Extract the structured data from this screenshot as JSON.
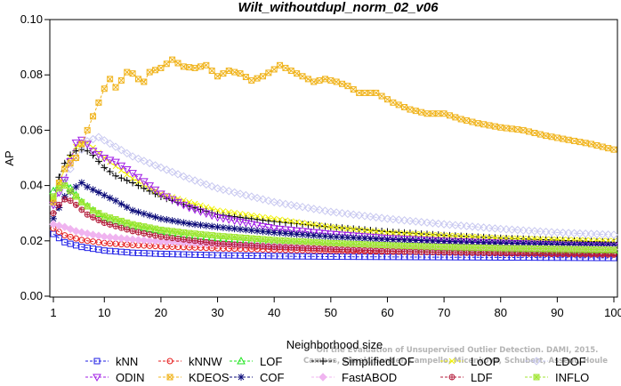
{
  "chart_data": {
    "type": "line",
    "title": "Wilt_withoutdupl_norm_02_v06",
    "xlabel": "Neighborhood size",
    "ylabel": "AP",
    "xlim": [
      1,
      100
    ],
    "ylim": [
      0,
      0.1
    ],
    "xticks": [
      "1",
      "10",
      "20",
      "30",
      "40",
      "50",
      "60",
      "70",
      "80",
      "90",
      "100"
    ],
    "yticks": [
      "0.00",
      "0.02",
      "0.04",
      "0.06",
      "0.08",
      "0.10"
    ],
    "credit_lines": [
      "Campos, Zimek, Sander, Campello, Micenkova, Schubert, Assent, Houle",
      "On the Evaluation of Unsupervised Outlier Detection. DAMI, 2015."
    ],
    "legend_position": "bottom",
    "series": [
      {
        "name": "kNN",
        "color": "#1e1ee6",
        "marker": "square",
        "points": [
          [
            1,
            0.0225
          ],
          [
            3,
            0.0195
          ],
          [
            6,
            0.0178
          ],
          [
            10,
            0.0165
          ],
          [
            15,
            0.0157
          ],
          [
            20,
            0.0153
          ],
          [
            30,
            0.0148
          ],
          [
            40,
            0.0145
          ],
          [
            50,
            0.0143
          ],
          [
            60,
            0.0142
          ],
          [
            70,
            0.0141
          ],
          [
            80,
            0.014
          ],
          [
            90,
            0.0139
          ],
          [
            100,
            0.0138
          ]
        ]
      },
      {
        "name": "kNNW",
        "color": "#e61e1e",
        "marker": "circle",
        "points": [
          [
            1,
            0.0245
          ],
          [
            3,
            0.022
          ],
          [
            6,
            0.0203
          ],
          [
            10,
            0.0192
          ],
          [
            15,
            0.0185
          ],
          [
            20,
            0.018
          ],
          [
            30,
            0.0173
          ],
          [
            40,
            0.0168
          ],
          [
            50,
            0.0164
          ],
          [
            60,
            0.0161
          ],
          [
            70,
            0.0159
          ],
          [
            80,
            0.0157
          ],
          [
            90,
            0.0155
          ],
          [
            100,
            0.0154
          ]
        ]
      },
      {
        "name": "LOF",
        "color": "#1ee61e",
        "marker": "triangle-up",
        "points": [
          [
            1,
            0.038
          ],
          [
            2,
            0.04
          ],
          [
            3,
            0.041
          ],
          [
            4,
            0.039
          ],
          [
            6,
            0.034
          ],
          [
            8,
            0.031
          ],
          [
            10,
            0.0285
          ],
          [
            15,
            0.0255
          ],
          [
            20,
            0.0235
          ],
          [
            25,
            0.022
          ],
          [
            30,
            0.021
          ],
          [
            40,
            0.0195
          ],
          [
            50,
            0.0185
          ],
          [
            60,
            0.0178
          ],
          [
            70,
            0.0173
          ],
          [
            80,
            0.017
          ],
          [
            90,
            0.0167
          ],
          [
            100,
            0.0165
          ]
        ]
      },
      {
        "name": "SimplifiedLOF",
        "color": "#000000",
        "marker": "plus",
        "points": [
          [
            1,
            0.034
          ],
          [
            2,
            0.043
          ],
          [
            3,
            0.048
          ],
          [
            4,
            0.051
          ],
          [
            5,
            0.0525
          ],
          [
            6,
            0.053
          ],
          [
            7,
            0.0525
          ],
          [
            8,
            0.051
          ],
          [
            10,
            0.0465
          ],
          [
            12,
            0.0435
          ],
          [
            15,
            0.041
          ],
          [
            20,
            0.036
          ],
          [
            25,
            0.0325
          ],
          [
            30,
            0.0295
          ],
          [
            40,
            0.027
          ],
          [
            50,
            0.025
          ],
          [
            60,
            0.0233
          ],
          [
            70,
            0.022
          ],
          [
            80,
            0.021
          ],
          [
            90,
            0.0202
          ],
          [
            100,
            0.0195
          ]
        ]
      },
      {
        "name": "LoOP",
        "color": "#f0f000",
        "marker": "cross",
        "points": [
          [
            1,
            0.035
          ],
          [
            3,
            0.046
          ],
          [
            5,
            0.054
          ],
          [
            7,
            0.0555
          ],
          [
            10,
            0.05
          ],
          [
            15,
            0.0425
          ],
          [
            20,
            0.037
          ],
          [
            30,
            0.031
          ],
          [
            40,
            0.028
          ],
          [
            50,
            0.025
          ],
          [
            60,
            0.023
          ],
          [
            70,
            0.022
          ],
          [
            80,
            0.021
          ],
          [
            90,
            0.0205
          ],
          [
            100,
            0.02
          ]
        ]
      },
      {
        "name": "LDOF",
        "color": "#c8c8f0",
        "marker": "diamond",
        "points": [
          [
            1,
            0.033
          ],
          [
            3,
            0.042
          ],
          [
            5,
            0.05
          ],
          [
            7,
            0.056
          ],
          [
            9,
            0.0575
          ],
          [
            12,
            0.054
          ],
          [
            15,
            0.0505
          ],
          [
            20,
            0.0465
          ],
          [
            25,
            0.0425
          ],
          [
            30,
            0.039
          ],
          [
            40,
            0.034
          ],
          [
            50,
            0.0305
          ],
          [
            60,
            0.028
          ],
          [
            70,
            0.026
          ],
          [
            80,
            0.0243
          ],
          [
            90,
            0.023
          ],
          [
            100,
            0.0222
          ]
        ]
      },
      {
        "name": "ODIN",
        "color": "#a01ee6",
        "marker": "triangle-down",
        "points": [
          [
            1,
            0.033
          ],
          [
            3,
            0.042
          ],
          [
            5,
            0.0555
          ],
          [
            6,
            0.0565
          ],
          [
            7,
            0.055
          ],
          [
            8,
            0.0525
          ],
          [
            10,
            0.05
          ],
          [
            12,
            0.0485
          ],
          [
            15,
            0.0445
          ],
          [
            18,
            0.04
          ],
          [
            20,
            0.037
          ],
          [
            25,
            0.032
          ],
          [
            30,
            0.0285
          ],
          [
            40,
            0.0245
          ],
          [
            50,
            0.0225
          ],
          [
            60,
            0.021
          ],
          [
            70,
            0.02
          ],
          [
            80,
            0.0193
          ],
          [
            90,
            0.0187
          ],
          [
            100,
            0.0183
          ]
        ]
      },
      {
        "name": "KDEOS",
        "color": "#f0b41e",
        "marker": "square-x",
        "points": [
          [
            1,
            0.034
          ],
          [
            2,
            0.041
          ],
          [
            3,
            0.046
          ],
          [
            4,
            0.048
          ],
          [
            5,
            0.05
          ],
          [
            6,
            0.055
          ],
          [
            7,
            0.06
          ],
          [
            8,
            0.065
          ],
          [
            9,
            0.07
          ],
          [
            10,
            0.075
          ],
          [
            11,
            0.0785
          ],
          [
            12,
            0.0755
          ],
          [
            13,
            0.078
          ],
          [
            14,
            0.081
          ],
          [
            15,
            0.0805
          ],
          [
            16,
            0.0785
          ],
          [
            17,
            0.0775
          ],
          [
            18,
            0.081
          ],
          [
            20,
            0.0825
          ],
          [
            22,
            0.0855
          ],
          [
            24,
            0.083
          ],
          [
            26,
            0.0825
          ],
          [
            28,
            0.0835
          ],
          [
            30,
            0.0795
          ],
          [
            32,
            0.0815
          ],
          [
            34,
            0.0805
          ],
          [
            36,
            0.078
          ],
          [
            38,
            0.0795
          ],
          [
            40,
            0.082
          ],
          [
            41,
            0.0835
          ],
          [
            43,
            0.0815
          ],
          [
            45,
            0.0795
          ],
          [
            47,
            0.0775
          ],
          [
            49,
            0.0785
          ],
          [
            51,
            0.0775
          ],
          [
            53,
            0.076
          ],
          [
            55,
            0.0735
          ],
          [
            58,
            0.0735
          ],
          [
            61,
            0.07
          ],
          [
            64,
            0.0675
          ],
          [
            67,
            0.066
          ],
          [
            70,
            0.066
          ],
          [
            73,
            0.064
          ],
          [
            76,
            0.0625
          ],
          [
            80,
            0.061
          ],
          [
            84,
            0.06
          ],
          [
            88,
            0.058
          ],
          [
            92,
            0.0565
          ],
          [
            96,
            0.055
          ],
          [
            100,
            0.053
          ]
        ]
      },
      {
        "name": "COF",
        "color": "#0a0a78",
        "marker": "asterisk",
        "points": [
          [
            1,
            0.028
          ],
          [
            3,
            0.036
          ],
          [
            5,
            0.0395
          ],
          [
            6,
            0.041
          ],
          [
            7,
            0.0395
          ],
          [
            8,
            0.0385
          ],
          [
            10,
            0.0365
          ],
          [
            12,
            0.0345
          ],
          [
            15,
            0.031
          ],
          [
            20,
            0.028
          ],
          [
            25,
            0.0262
          ],
          [
            30,
            0.025
          ],
          [
            40,
            0.023
          ],
          [
            50,
            0.0215
          ],
          [
            60,
            0.0205
          ],
          [
            70,
            0.0198
          ],
          [
            80,
            0.0192
          ],
          [
            90,
            0.0188
          ],
          [
            100,
            0.0185
          ]
        ]
      },
      {
        "name": "FastABOD",
        "color": "#f0b4f0",
        "marker": "diamond-fill",
        "points": [
          [
            1,
            0.026
          ],
          [
            3,
            0.025
          ],
          [
            5,
            0.0235
          ],
          [
            8,
            0.0222
          ],
          [
            10,
            0.0215
          ],
          [
            15,
            0.0205
          ],
          [
            20,
            0.0198
          ],
          [
            30,
            0.0188
          ],
          [
            40,
            0.0182
          ],
          [
            50,
            0.0178
          ],
          [
            60,
            0.0175
          ],
          [
            70,
            0.0173
          ],
          [
            80,
            0.0171
          ],
          [
            90,
            0.017
          ],
          [
            100,
            0.0169
          ]
        ]
      },
      {
        "name": "LDF",
        "color": "#b41e3c",
        "marker": "circle-plus",
        "points": [
          [
            1,
            0.03
          ],
          [
            2,
            0.033
          ],
          [
            3,
            0.035
          ],
          [
            4,
            0.0345
          ],
          [
            5,
            0.033
          ],
          [
            7,
            0.0295
          ],
          [
            10,
            0.0265
          ],
          [
            15,
            0.0235
          ],
          [
            20,
            0.0215
          ],
          [
            30,
            0.019
          ],
          [
            40,
            0.0178
          ],
          [
            50,
            0.017
          ],
          [
            60,
            0.0163
          ],
          [
            70,
            0.0158
          ],
          [
            80,
            0.0155
          ],
          [
            90,
            0.0152
          ],
          [
            100,
            0.015
          ]
        ]
      },
      {
        "name": "INFLO",
        "color": "#a0e632",
        "marker": "star-square",
        "points": [
          [
            1,
            0.036
          ],
          [
            2,
            0.039
          ],
          [
            3,
            0.04
          ],
          [
            4,
            0.038
          ],
          [
            6,
            0.034
          ],
          [
            8,
            0.031
          ],
          [
            10,
            0.029
          ],
          [
            15,
            0.026
          ],
          [
            20,
            0.024
          ],
          [
            25,
            0.0228
          ],
          [
            30,
            0.0218
          ],
          [
            40,
            0.0203
          ],
          [
            50,
            0.0192
          ],
          [
            60,
            0.0184
          ],
          [
            70,
            0.0178
          ],
          [
            80,
            0.0174
          ],
          [
            90,
            0.0171
          ],
          [
            100,
            0.0168
          ]
        ]
      }
    ]
  }
}
